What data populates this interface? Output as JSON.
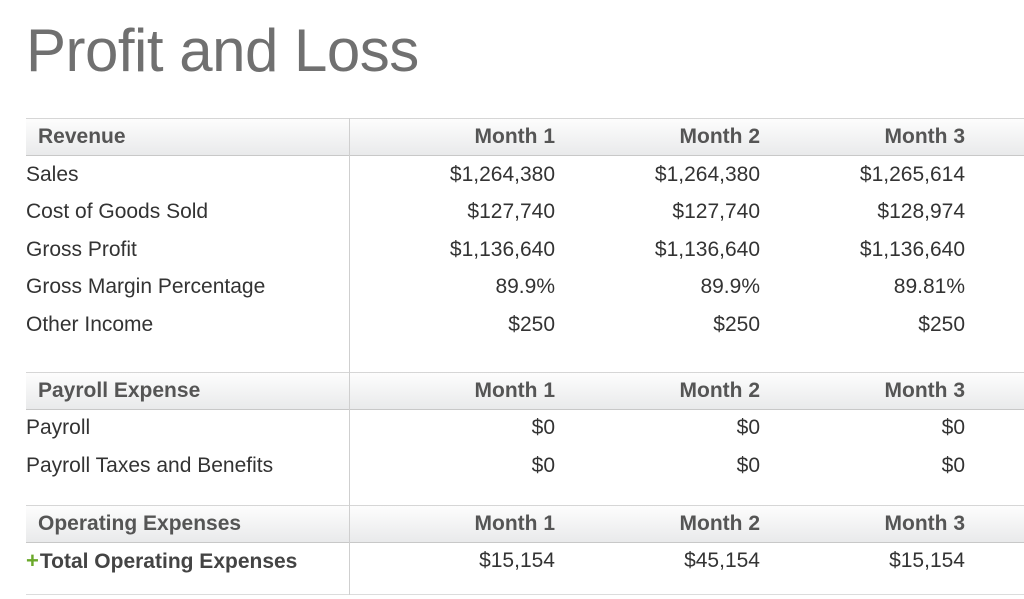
{
  "title": "Profit and Loss",
  "sections": [
    {
      "header": {
        "label": "Revenue",
        "months": [
          "Month 1",
          "Month 2",
          "Month 3"
        ]
      },
      "rows": [
        {
          "label": "Sales",
          "values": [
            "$1,264,380",
            "$1,264,380",
            "$1,265,614"
          ]
        },
        {
          "label": "Cost of Goods Sold",
          "values": [
            "$127,740",
            "$127,740",
            "$128,974"
          ]
        },
        {
          "label": "Gross Profit",
          "values": [
            "$1,136,640",
            "$1,136,640",
            "$1,136,640"
          ]
        },
        {
          "label": "Gross Margin Percentage",
          "values": [
            "89.9%",
            "89.9%",
            "89.81%"
          ]
        },
        {
          "label": "Other Income",
          "values": [
            "$250",
            "$250",
            "$250"
          ]
        }
      ]
    },
    {
      "header": {
        "label": "Payroll Expense",
        "months": [
          "Month 1",
          "Month 2",
          "Month 3"
        ]
      },
      "rows": [
        {
          "label": "Payroll",
          "values": [
            "$0",
            "$0",
            "$0"
          ]
        },
        {
          "label": "Payroll Taxes and Benefits",
          "values": [
            "$0",
            "$0",
            "$0"
          ]
        }
      ]
    },
    {
      "header": {
        "label": "Operating Expenses",
        "months": [
          "Month 1",
          "Month 2",
          "Month 3"
        ]
      },
      "rows": [
        {
          "label": "Total Operating Expenses",
          "values": [
            "$15,154",
            "$45,154",
            "$15,154"
          ],
          "expandable": true,
          "expand_icon": "plus-icon",
          "expand_color": "#6aa82a"
        }
      ]
    }
  ]
}
